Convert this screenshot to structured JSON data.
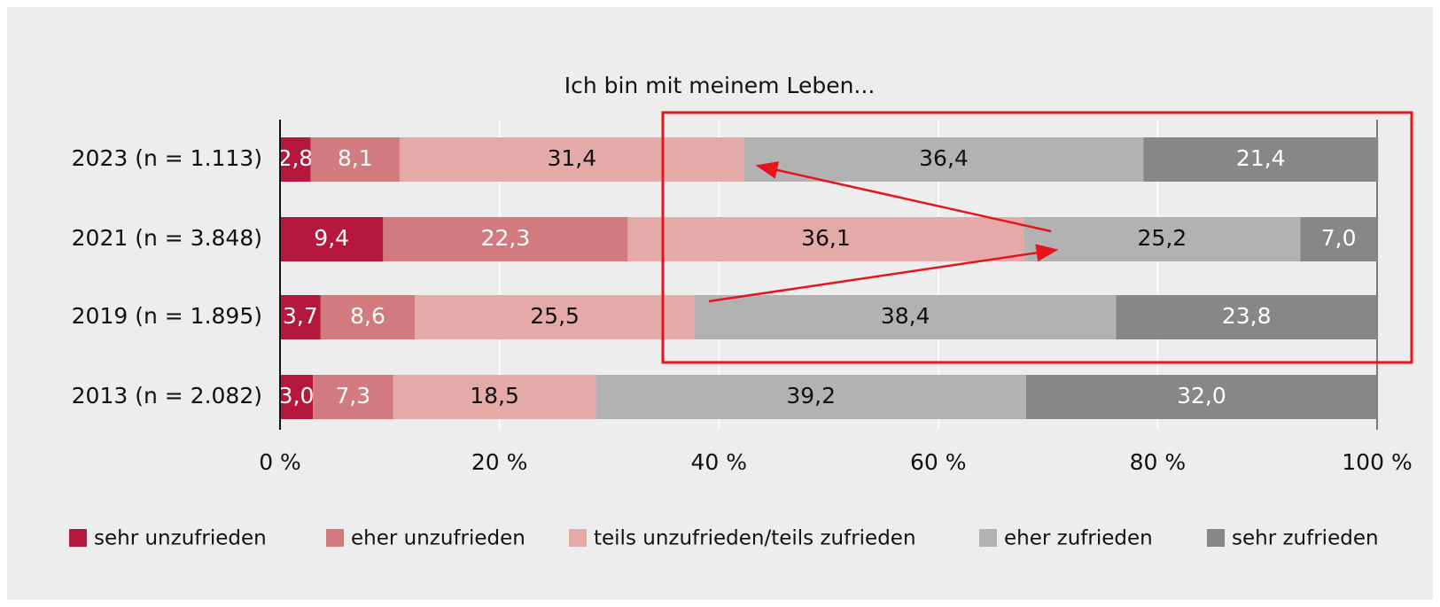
{
  "chart_data": {
    "type": "stacked-bar-horizontal",
    "title": "Ich bin mit meinem Leben...",
    "categories": [
      "2023 (n = 1.113)",
      "2021 (n = 3.848)",
      "2019 (n = 1.895)",
      "2013 (n = 2.082)"
    ],
    "series": [
      {
        "name": "sehr unzufrieden",
        "color": "#b5183c",
        "label_color": "#ffffff",
        "values": [
          2.8,
          9.4,
          3.7,
          3.0
        ],
        "value_labels": [
          "2,8",
          "9,4",
          "3,7",
          "3,0"
        ]
      },
      {
        "name": "eher unzufrieden",
        "color": "#d17b7e",
        "label_color": "#ffffff",
        "values": [
          8.1,
          22.3,
          8.6,
          7.3
        ],
        "value_labels": [
          "8,1",
          "22,3",
          "8,6",
          "7,3"
        ]
      },
      {
        "name": "teils unzufrieden/teils zufrieden",
        "color": "#e3aaa8",
        "label_color": "#111111",
        "values": [
          31.4,
          36.1,
          25.5,
          18.5
        ],
        "value_labels": [
          "31,4",
          "36,1",
          "25,5",
          "18,5"
        ]
      },
      {
        "name": "eher zufrieden",
        "color": "#b2b2b2",
        "label_color": "#111111",
        "values": [
          36.4,
          25.2,
          38.4,
          39.2
        ],
        "value_labels": [
          "36,4",
          "25,2",
          "38,4",
          "39,2"
        ]
      },
      {
        "name": "sehr zufrieden",
        "color": "#878787",
        "label_color": "#ffffff",
        "values": [
          21.4,
          7.0,
          23.8,
          32.0
        ],
        "value_labels": [
          "21,4",
          "7,0",
          "23,8",
          "32,0"
        ]
      }
    ],
    "xlim": [
      0,
      100
    ],
    "xticks": [
      {
        "value": 0,
        "label": "0 %"
      },
      {
        "value": 20,
        "label": "20 %"
      },
      {
        "value": 40,
        "label": "40 %"
      },
      {
        "value": 60,
        "label": "60 %"
      },
      {
        "value": 80,
        "label": "80 %"
      },
      {
        "value": 100,
        "label": "100 %"
      }
    ],
    "grid": true,
    "legend": "bottom"
  }
}
